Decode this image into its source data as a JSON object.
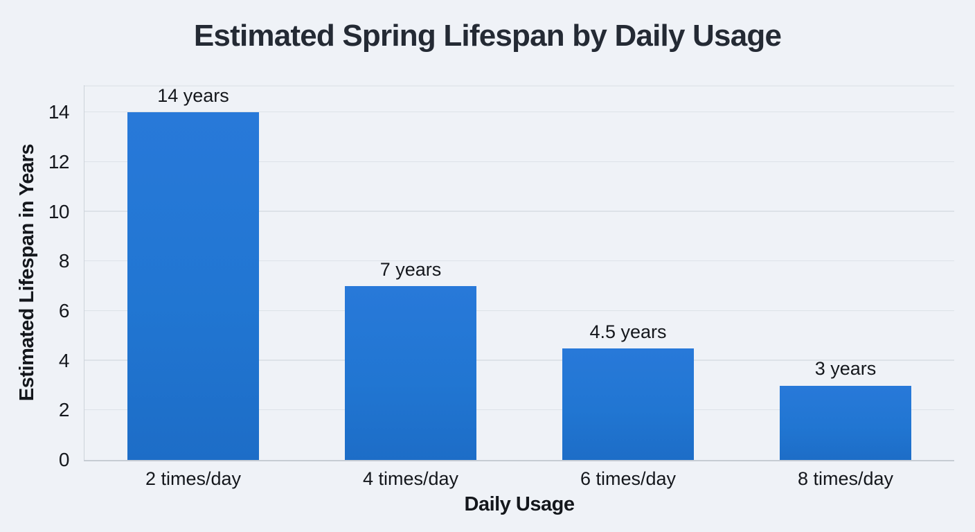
{
  "chart_data": {
    "type": "bar",
    "title": "Estimated Spring Lifespan by Daily Usage",
    "xlabel": "Daily Usage",
    "ylabel": "Estimated Lifespan in Years",
    "categories": [
      "2 times/day",
      "4 times/day",
      "6 times/day",
      "8 times/day"
    ],
    "values": [
      14,
      7,
      4.5,
      3
    ],
    "value_labels": [
      "14 years",
      "7 years",
      "4.5 years",
      "3 years"
    ],
    "yticks": [
      0,
      2,
      4,
      6,
      8,
      10,
      12,
      14
    ],
    "ylim": [
      0,
      15.1
    ],
    "grid": true,
    "legend": false,
    "bar_width_fraction": 0.605,
    "colors": {
      "bar": "#2176d2",
      "background": "#eff2f7",
      "gridline": "#dde2e8",
      "axis": "#cdd3da",
      "text": "#14171c",
      "title": "#242a34"
    }
  }
}
